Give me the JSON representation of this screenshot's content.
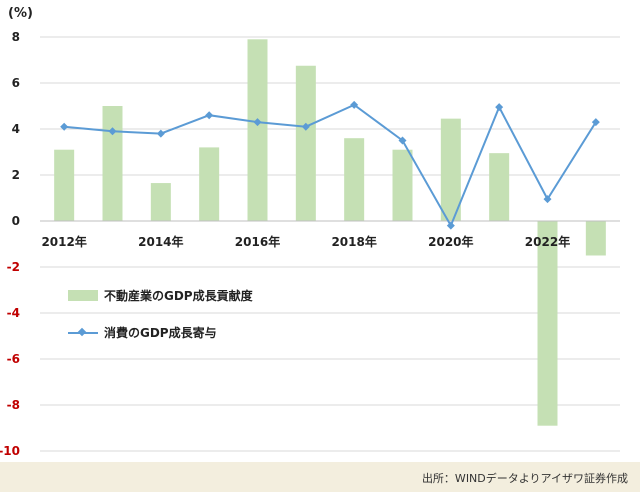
{
  "chart_data": {
    "type": "bar",
    "unit_label": "(%)",
    "categories": [
      "2012",
      "2013",
      "2014",
      "2015",
      "2016",
      "2017",
      "2018",
      "2019",
      "2020",
      "2021",
      "2022",
      "2023"
    ],
    "x_tick_labels": [
      "2012年",
      "",
      "2014年",
      "",
      "2016年",
      "",
      "2018年",
      "",
      "2020年",
      "",
      "2022年",
      ""
    ],
    "series": [
      {
        "name": "不動産業のGDP成長貢献度",
        "type": "bar",
        "values": [
          3.1,
          5.0,
          1.65,
          3.2,
          7.9,
          6.75,
          3.6,
          3.1,
          4.45,
          2.95,
          -8.9,
          -1.5
        ]
      },
      {
        "name": "消費のGDP成長寄与",
        "type": "line",
        "values": [
          4.1,
          3.9,
          3.8,
          4.6,
          4.3,
          4.1,
          5.05,
          3.5,
          -0.2,
          4.95,
          0.95,
          4.3
        ]
      }
    ],
    "ylim": [
      -10,
      8
    ],
    "y_ticks": [
      8,
      6,
      4,
      2,
      0,
      -2,
      -4,
      -6,
      -8,
      -10
    ],
    "grid": true,
    "colors": {
      "bar": "#c5e0b4",
      "line": "#5b9bd5",
      "positive_tick": "#222222",
      "negative_tick": "#c00000"
    }
  },
  "source": "出所：WINDデータよりアイザワ証券作成"
}
